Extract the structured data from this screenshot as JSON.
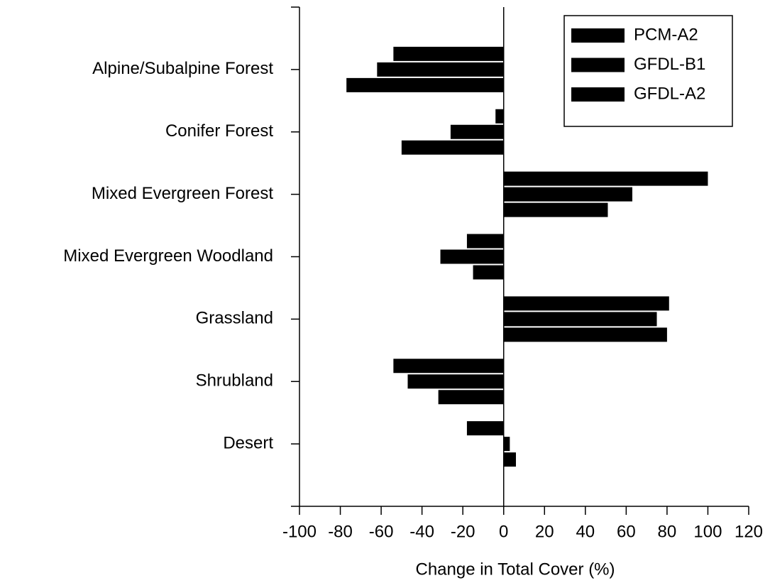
{
  "chart_data": {
    "type": "barh",
    "xlabel": "Change in Total Cover (%)",
    "categories": [
      "Alpine/Subalpine Forest",
      "Conifer Forest",
      "Mixed Evergreen Forest",
      "Mixed Evergreen Woodland",
      "Grassland",
      "Shrubland",
      "Desert"
    ],
    "series": [
      {
        "name": "PCM-A2",
        "color": "#000000",
        "values": [
          -54,
          -4,
          100,
          -18,
          81,
          -54,
          -18
        ]
      },
      {
        "name": "GFDL-B1",
        "color": "#000000",
        "values": [
          -62,
          -26,
          63,
          -31,
          75,
          -47,
          3
        ]
      },
      {
        "name": "GFDL-A2",
        "color": "#000000",
        "values": [
          -77,
          -50,
          51,
          -15,
          80,
          -32,
          6
        ]
      }
    ],
    "xlim": [
      -100,
      120
    ],
    "xticks": [
      -100,
      -80,
      -60,
      -40,
      -20,
      0,
      20,
      40,
      60,
      80,
      100,
      120
    ],
    "legend": "upper right"
  }
}
